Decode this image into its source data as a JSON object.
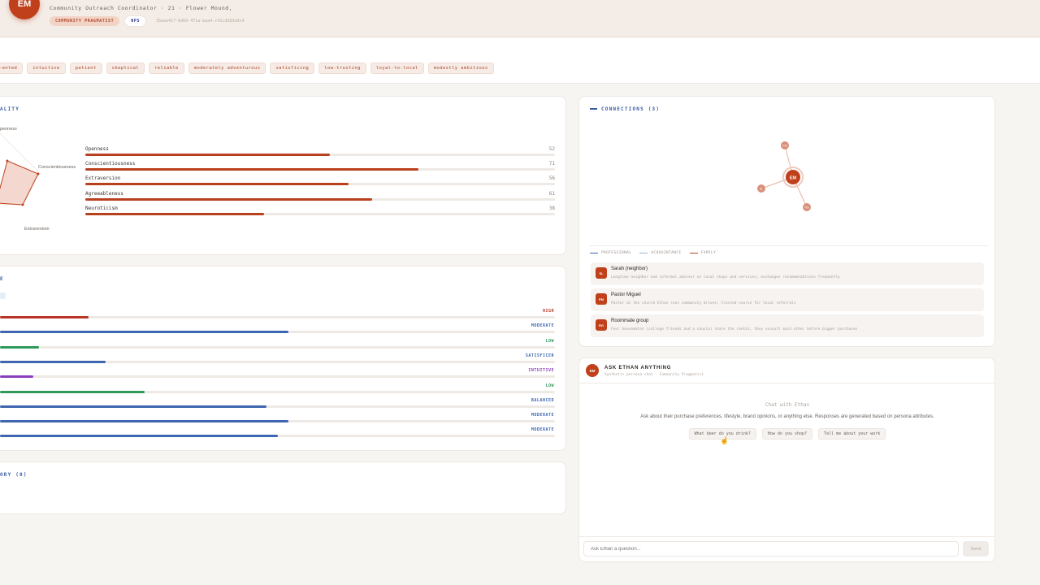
{
  "header": {
    "avatar_initials": "EM",
    "subtitle": "Community Outreach Coordinator · 21 · Flower Mound,",
    "segment_chip": "COMMUNITY PRAGMATIST",
    "nps_chip": "NPS",
    "persona_id": "35eea417-8d69-471a-baa4-c41cd583e9c4"
  },
  "traits": [
    "-ented",
    "intuitive",
    "patient",
    "skeptical",
    "reliable",
    "moderately adventurous",
    "satisficing",
    "low-trusting",
    "loyal-to-local",
    "modestly ambitious"
  ],
  "personality": {
    "title": "ALITY",
    "radar_labels": {
      "top": "penness",
      "right": "Conscientiousness",
      "bottom": "Extraversion"
    },
    "scores": [
      {
        "label": "Openness",
        "value": 52
      },
      {
        "label": "Conscientiousness",
        "value": 71
      },
      {
        "label": "Extraversion",
        "value": 56
      },
      {
        "label": "Agreeableness",
        "value": 61
      },
      {
        "label": "Neuroticism",
        "value": 38
      }
    ],
    "bar_color": "#b9401f"
  },
  "behavior": {
    "title": "E",
    "rows": [
      {
        "level": "HIGH",
        "fill": 0.16,
        "color": "#b83424"
      },
      {
        "level": "MODERATE",
        "fill": 0.52,
        "color": "#3f66b0"
      },
      {
        "level": "LOW",
        "fill": 0.07,
        "color": "#2f9a5c"
      },
      {
        "level": "SATISFICER",
        "fill": 0.19,
        "color": "#3f66b0"
      },
      {
        "level": "INTUITIVE",
        "fill": 0.06,
        "color": "#8a3fb8"
      },
      {
        "level": "LOW",
        "fill": 0.26,
        "color": "#2f9a5c"
      },
      {
        "level": "BALANCED",
        "fill": 0.48,
        "color": "#3f66b0"
      },
      {
        "level": "MODERATE",
        "fill": 0.52,
        "color": "#3f66b0"
      },
      {
        "level": "MODERATE",
        "fill": 0.5,
        "color": "#3f66b0"
      }
    ]
  },
  "history": {
    "title": "ORY (0)"
  },
  "connections": {
    "title": "CONNECTIONS (3)",
    "center_node": "EM",
    "outer_nodes": [
      "PM",
      "SL",
      "RG"
    ],
    "legend": [
      {
        "label": "PROFESSIONAL",
        "color": "#3f66b0"
      },
      {
        "label": "ACQUAINTANCE",
        "color": "#9ab5d8"
      },
      {
        "label": "FAMILY",
        "color": "#b9401f"
      }
    ],
    "items": [
      {
        "initials": "SL",
        "name": "Sarah (neighbor)",
        "desc": "Longtime neighbor and informal adviser on local shops and services; exchanges recommendations frequently"
      },
      {
        "initials": "PM",
        "name": "Pastor Miguel",
        "desc": "Pastor at the church Ethan runs community drives; trusted source for local referrals"
      },
      {
        "initials": "RG",
        "name": "Roommate group",
        "desc": "Four housemates (college friends and a cousin) share the rental; they consult each other before bigger purchases"
      }
    ]
  },
  "chat": {
    "avatar_initials": "EM",
    "title": "ASK ETHAN ANYTHING",
    "subtitle": "Synthetic persona chat · Community Pragmatist",
    "empty_title": "Chat with Ethan",
    "empty_desc": "Ask about their purchase preferences, lifestyle, brand opinions, or anything else. Responses are generated based on persona attributes.",
    "suggestions": [
      "What beer do you drink?",
      "How do you shop?",
      "Tell me about your work"
    ],
    "input_placeholder": "Ask Ethan a question...",
    "send_label": "Send"
  }
}
